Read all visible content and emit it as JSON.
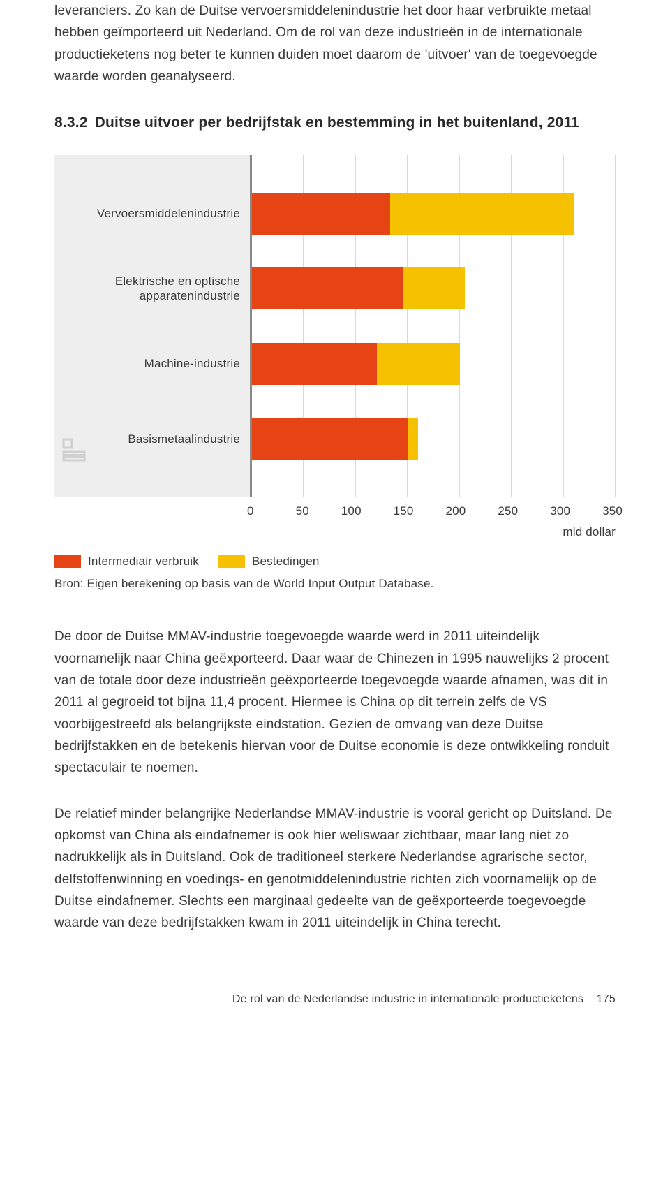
{
  "intro_para": "leveranciers. Zo kan de Duitse vervoersmiddelenindustrie het door haar verbruikte metaal hebben geïmporteerd uit Nederland. Om de rol van deze industrieën in de internationale productieketens nog beter te kunnen duiden moet daarom de 'uitvoer' van de toegevoegde waarde worden geanalyseerd.",
  "chart": {
    "number": "8.3.2",
    "title": "Duitse uitvoer per bedrijfstak en bestemming in het buitenland, 2011",
    "type": "stacked-horizontal-bar",
    "x_unit": "mld dollar",
    "x_min": 0,
    "x_max": 350,
    "x_ticks": [
      0,
      50,
      100,
      150,
      200,
      250,
      300,
      350
    ],
    "series": [
      {
        "name": "Intermediair verbruik",
        "color": "#e64415"
      },
      {
        "name": "Bestedingen",
        "color": "#f6c100"
      }
    ],
    "categories": [
      {
        "label": "Vervoersmiddelenindustrie",
        "values": [
          133,
          177
        ]
      },
      {
        "label": "Elektrische en optische apparatenindustrie",
        "values": [
          145,
          60
        ]
      },
      {
        "label": "Machine-industrie",
        "values": [
          120,
          80
        ]
      },
      {
        "label": "Basismetaalindustrie",
        "values": [
          150,
          10
        ]
      }
    ],
    "background_color": "#ffffff",
    "panel_bg": "#eeeeee",
    "grid_color": "#d8d8d8",
    "axis_color": "#888888",
    "label_fontsize": 17,
    "title_fontsize": 21,
    "source": "Bron: Eigen berekening op basis van de World Input Output Database."
  },
  "para2": "De door de Duitse MMAV-industrie toegevoegde waarde werd in 2011 uiteindelijk voornamelijk naar China geëxporteerd. Daar waar de Chinezen in 1995 nauwelijks 2 procent van de totale door deze industrieën geëxporteerde toegevoegde waarde afnamen, was dit in 2011 al gegroeid tot bijna 11,4 procent. Hiermee is China op dit terrein zelfs de VS voorbijgestreefd als belangrijkste eindstation. Gezien de omvang van deze Duitse bedrijfstakken en de betekenis hiervan voor de Duitse economie is deze ontwikkeling ronduit spectaculair te noemen.",
  "para3": "De relatief minder belangrijke Nederlandse MMAV-industrie is vooral gericht op Duitsland. De opkomst van China als eindafnemer is ook hier weliswaar zichtbaar, maar lang niet zo nadrukkelijk als in Duitsland. Ook de traditioneel sterkere Nederlandse agrarische sector, delfstoffenwinning en voedings- en genotmiddelenindustrie richten zich voornamelijk op de Duitse eindafnemer. Slechts een marginaal gedeelte van de geëxporteerde toegevoegde waarde van deze bedrijfstakken kwam in 2011 uiteindelijk in China terecht.",
  "footer": {
    "text": "De rol van de Nederlandse industrie in internationale productieketens",
    "page": "175"
  }
}
